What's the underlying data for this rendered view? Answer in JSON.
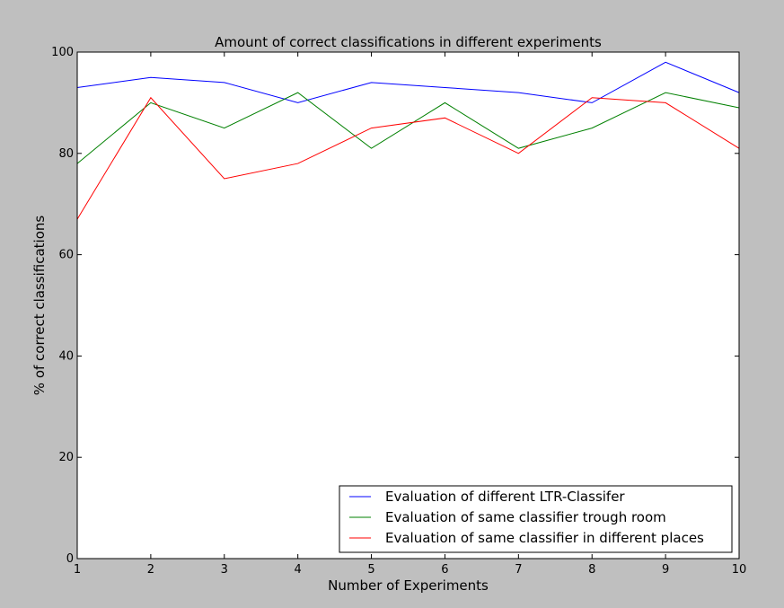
{
  "chart_data": {
    "type": "line",
    "title": "Amount of correct classifications in different experiments",
    "xlabel": "Number of Experiments",
    "ylabel": "% of correct classifications",
    "x": [
      1,
      2,
      3,
      4,
      5,
      6,
      7,
      8,
      9,
      10
    ],
    "xlim": [
      1,
      10
    ],
    "ylim": [
      0,
      100
    ],
    "xticks": [
      "1",
      "2",
      "3",
      "4",
      "5",
      "6",
      "7",
      "8",
      "9",
      "10"
    ],
    "yticks": [
      "0",
      "20",
      "40",
      "60",
      "80",
      "100"
    ],
    "grid": false,
    "legend_position": "lower-right",
    "series": [
      {
        "name": "Evaluation of different LTR-Classifer",
        "color": "#0000ff",
        "values": [
          93,
          95,
          94,
          90,
          94,
          93,
          92,
          90,
          98,
          92
        ]
      },
      {
        "name": "Evaluation of same classifier trough room",
        "color": "#008000",
        "values": [
          78,
          90,
          85,
          92,
          81,
          90,
          81,
          85,
          92,
          89
        ]
      },
      {
        "name": "Evaluation of same classifier in different places",
        "color": "#ff0000",
        "values": [
          67,
          91,
          75,
          78,
          85,
          87,
          80,
          91,
          90,
          81
        ]
      }
    ]
  }
}
